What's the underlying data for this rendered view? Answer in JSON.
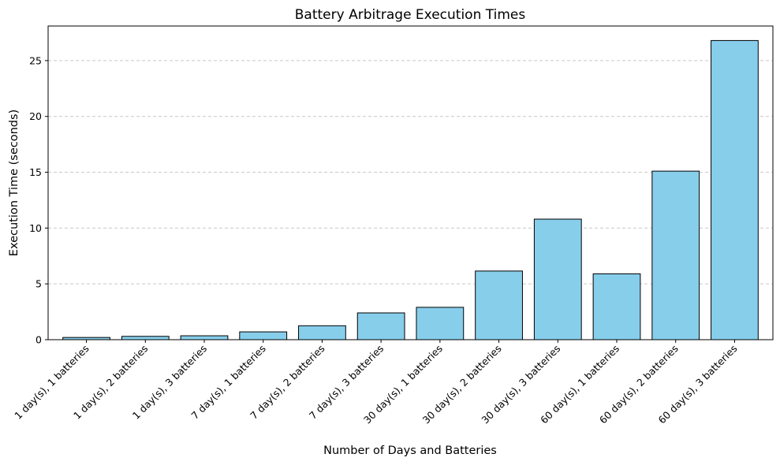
{
  "chart_data": {
    "type": "bar",
    "title": "Battery Arbitrage Execution Times",
    "xlabel": "Number of Days and Batteries",
    "ylabel": "Execution Time (seconds)",
    "categories": [
      "1 day(s), 1 batteries",
      "1 day(s), 2 batteries",
      "1 day(s), 3 batteries",
      "7 day(s), 1 batteries",
      "7 day(s), 2 batteries",
      "7 day(s), 3 batteries",
      "30 day(s), 1 batteries",
      "30 day(s), 2 batteries",
      "30 day(s), 3 batteries",
      "60 day(s), 1 batteries",
      "60 day(s), 2 batteries",
      "60 day(s), 3 batteries"
    ],
    "values": [
      0.2,
      0.3,
      0.35,
      0.7,
      1.25,
      2.4,
      2.9,
      6.15,
      10.8,
      5.9,
      15.1,
      26.8
    ],
    "ylim": [
      0,
      28.1
    ],
    "yticks": [
      0,
      5,
      10,
      15,
      20,
      25
    ],
    "grid": "y-dashed",
    "colors": {
      "bar_fill": "#87ceeb",
      "bar_edge": "#000000",
      "grid": "#c8c8c8",
      "axes": "#000000"
    }
  }
}
